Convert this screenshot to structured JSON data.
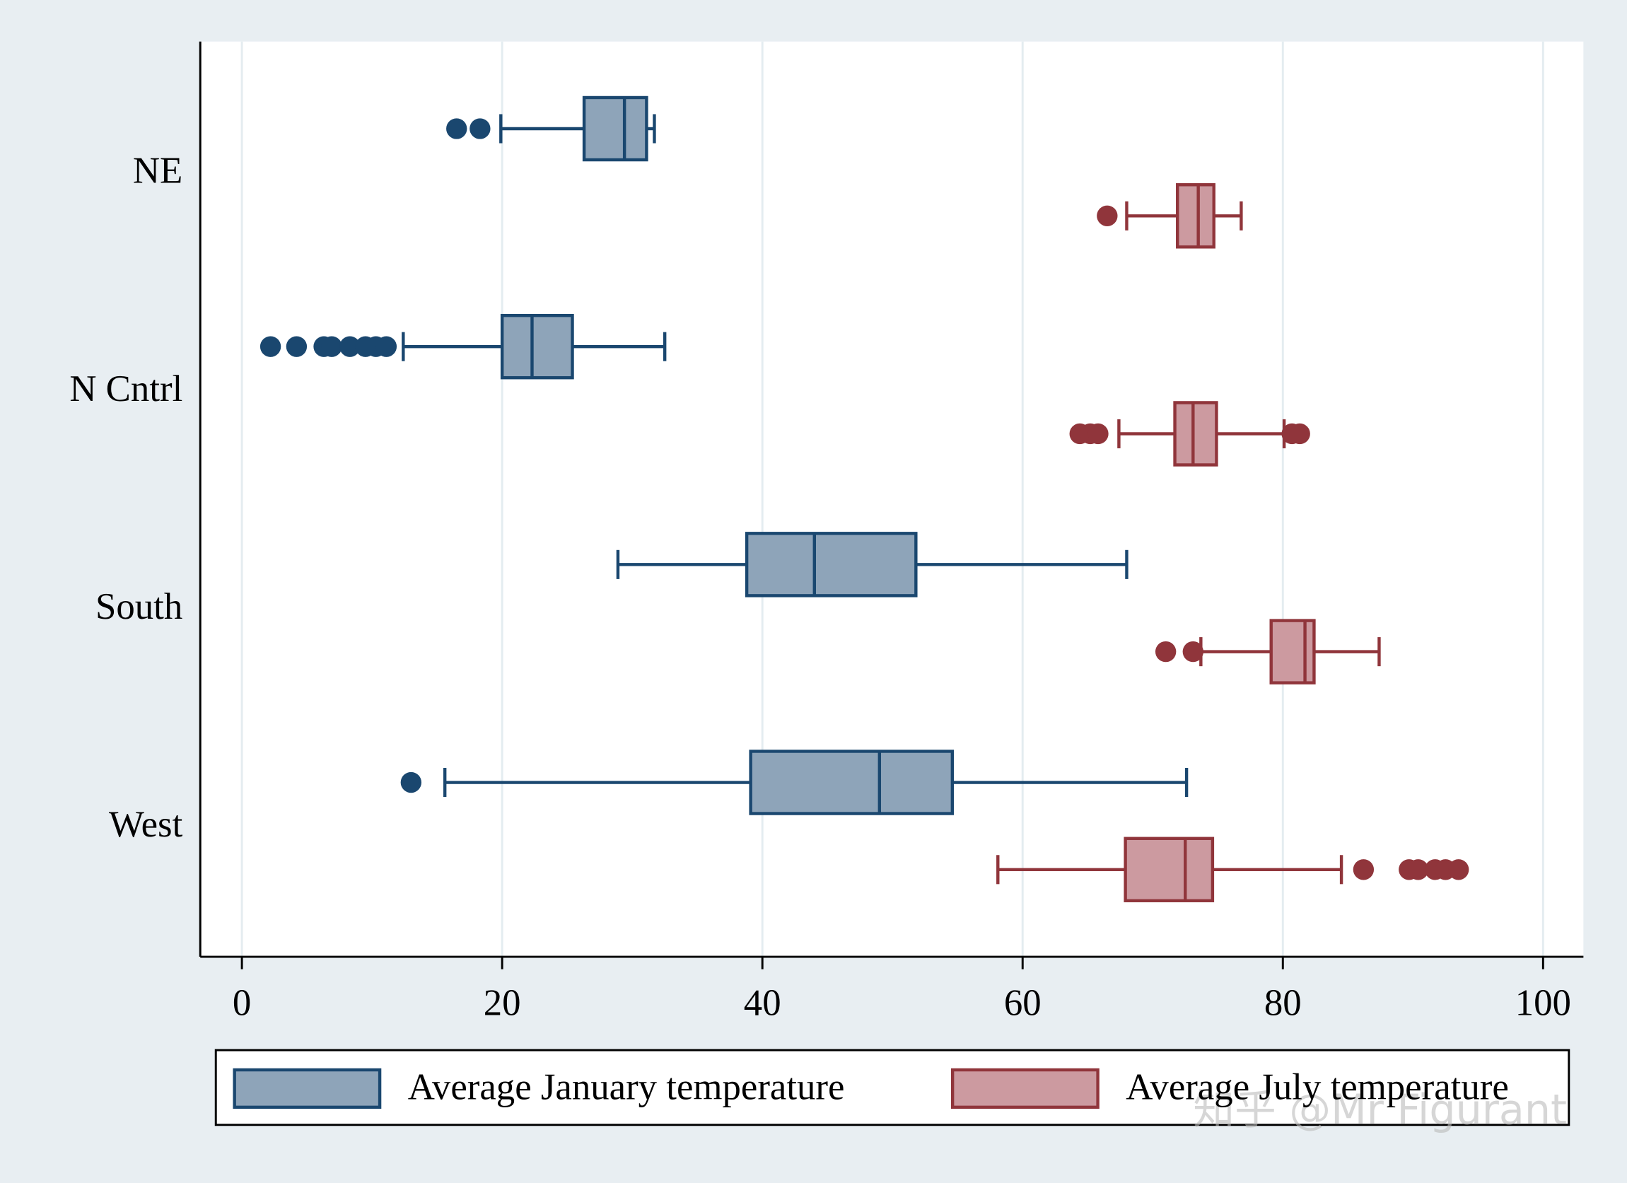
{
  "chart_data": {
    "type": "boxplot",
    "categories": [
      "NE",
      "N Cntrl",
      "South",
      "West"
    ],
    "xlim": [
      -3.2,
      103.1
    ],
    "xticks": [
      0,
      20,
      40,
      60,
      80,
      100
    ],
    "grid": true,
    "legend": "bottom",
    "watermark": "知乎 @Mr Figurant",
    "series": [
      {
        "name": "Average January temperature",
        "color": "#1a476f",
        "fill": "#8ea4b9",
        "boxes": [
          {
            "whislo": 19.9,
            "q1": 26.3,
            "med": 29.4,
            "q3": 31.1,
            "whishi": 31.7,
            "fliers": [
              16.5,
              18.3
            ]
          },
          {
            "whislo": 12.4,
            "q1": 20.0,
            "med": 22.3,
            "q3": 25.4,
            "whishi": 32.5,
            "fliers": [
              2.2,
              4.2,
              6.3,
              6.9,
              8.3,
              9.5,
              10.3,
              11.1
            ]
          },
          {
            "whislo": 28.9,
            "q1": 38.8,
            "med": 44.0,
            "q3": 51.8,
            "whishi": 68.0,
            "fliers": []
          },
          {
            "whislo": 15.6,
            "q1": 39.1,
            "med": 49.0,
            "q3": 54.6,
            "whishi": 72.6,
            "fliers": [
              13.0
            ]
          }
        ]
      },
      {
        "name": "Average July temperature",
        "color": "#90353b",
        "fill": "#cc9aa0",
        "boxes": [
          {
            "whislo": 68.0,
            "q1": 71.9,
            "med": 73.5,
            "q3": 74.7,
            "whishi": 76.8,
            "fliers": [
              66.5
            ]
          },
          {
            "whislo": 67.4,
            "q1": 71.7,
            "med": 73.1,
            "q3": 74.9,
            "whishi": 80.1,
            "fliers": [
              64.4,
              65.2,
              65.8,
              80.7,
              81.3
            ]
          },
          {
            "whislo": 73.7,
            "q1": 79.1,
            "med": 81.7,
            "q3": 82.4,
            "whishi": 87.4,
            "fliers": [
              71.0,
              73.1
            ]
          },
          {
            "whislo": 58.1,
            "q1": 67.9,
            "med": 72.5,
            "q3": 74.6,
            "whishi": 84.5,
            "fliers": [
              86.2,
              89.7,
              90.4,
              91.7,
              92.5,
              93.5
            ]
          }
        ]
      }
    ]
  }
}
